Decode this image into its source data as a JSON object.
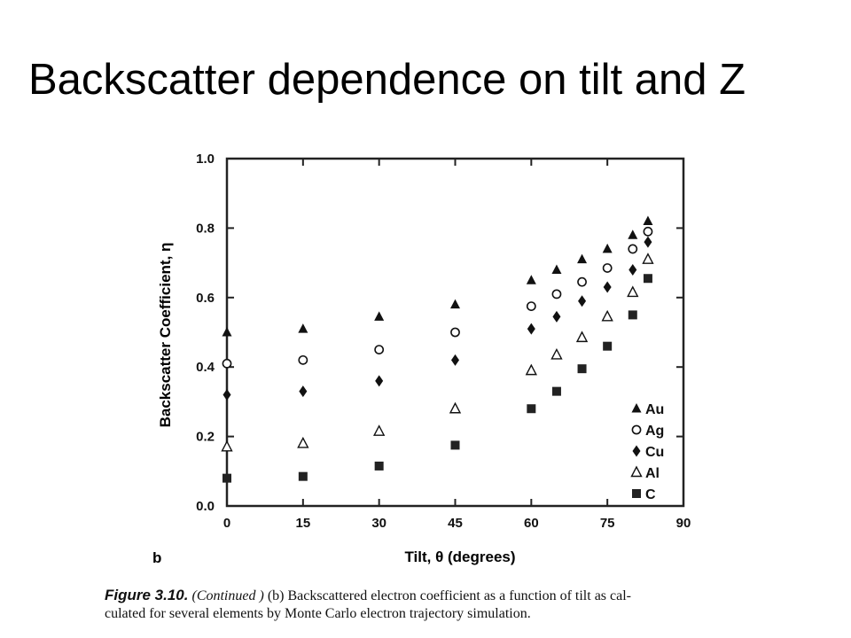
{
  "slide_title": "Backscatter dependence on tilt and Z",
  "panel_label": "b",
  "caption": {
    "figure_label": "Figure 3.10.",
    "continued": "(Continued )",
    "line1_text": " (b) Backscattered electron coefficient as a function of tilt as cal-",
    "line2_text": "culated for several elements by Monte Carlo electron trajectory simulation."
  },
  "chart_data": {
    "type": "scatter",
    "xlabel": "Tilt, θ (degrees)",
    "ylabel": "Backscatter Coefficient, η",
    "xlim": [
      0,
      90
    ],
    "ylim": [
      0,
      1
    ],
    "x_ticks": [
      "0",
      "15",
      "30",
      "45",
      "60",
      "75",
      "90"
    ],
    "y_ticks": [
      "0.0",
      "0.2",
      "0.4",
      "0.6",
      "0.8",
      "1.0"
    ],
    "legend_position": "bottom-right",
    "grid": false,
    "series": [
      {
        "name": "Au",
        "marker": "filled-triangle",
        "x": [
          0,
          15,
          30,
          45,
          60,
          65,
          70,
          75,
          80,
          83
        ],
        "y": [
          0.5,
          0.51,
          0.545,
          0.58,
          0.65,
          0.68,
          0.71,
          0.74,
          0.78,
          0.82
        ]
      },
      {
        "name": "Ag",
        "marker": "open-circle",
        "x": [
          0,
          15,
          30,
          45,
          60,
          65,
          70,
          75,
          80,
          83
        ],
        "y": [
          0.41,
          0.42,
          0.45,
          0.5,
          0.575,
          0.61,
          0.645,
          0.685,
          0.74,
          0.79
        ]
      },
      {
        "name": "Cu",
        "marker": "filled-diamond",
        "x": [
          0,
          15,
          30,
          45,
          60,
          65,
          70,
          75,
          80,
          83
        ],
        "y": [
          0.32,
          0.33,
          0.36,
          0.42,
          0.51,
          0.545,
          0.59,
          0.63,
          0.68,
          0.76
        ]
      },
      {
        "name": "Al",
        "marker": "open-triangle",
        "x": [
          0,
          15,
          30,
          45,
          60,
          65,
          70,
          75,
          80,
          83
        ],
        "y": [
          0.17,
          0.18,
          0.215,
          0.28,
          0.39,
          0.435,
          0.485,
          0.545,
          0.615,
          0.71
        ]
      },
      {
        "name": "C",
        "marker": "filled-square",
        "x": [
          0,
          15,
          30,
          45,
          60,
          65,
          70,
          75,
          80,
          83
        ],
        "y": [
          0.08,
          0.085,
          0.115,
          0.175,
          0.28,
          0.33,
          0.395,
          0.46,
          0.55,
          0.655
        ]
      }
    ]
  }
}
